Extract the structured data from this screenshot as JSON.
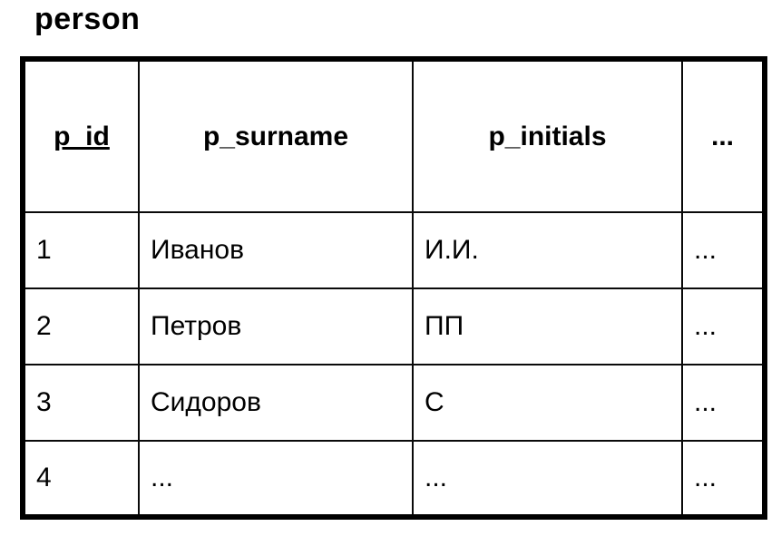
{
  "table": {
    "title": "person",
    "columns": [
      {
        "label": "p_id",
        "primary_key": true
      },
      {
        "label": "p_surname",
        "primary_key": false
      },
      {
        "label": "p_initials",
        "primary_key": false
      },
      {
        "label": "...",
        "primary_key": false
      }
    ],
    "rows": [
      [
        "1",
        "Иванов",
        "И.И.",
        "..."
      ],
      [
        "2",
        "Петров",
        "ПП",
        "..."
      ],
      [
        "3",
        "Сидоров",
        "С",
        "..."
      ],
      [
        "4",
        "...",
        "...",
        "..."
      ]
    ]
  },
  "colors": {
    "background": "#ffffff",
    "border": "#000000",
    "text": "#000000"
  }
}
